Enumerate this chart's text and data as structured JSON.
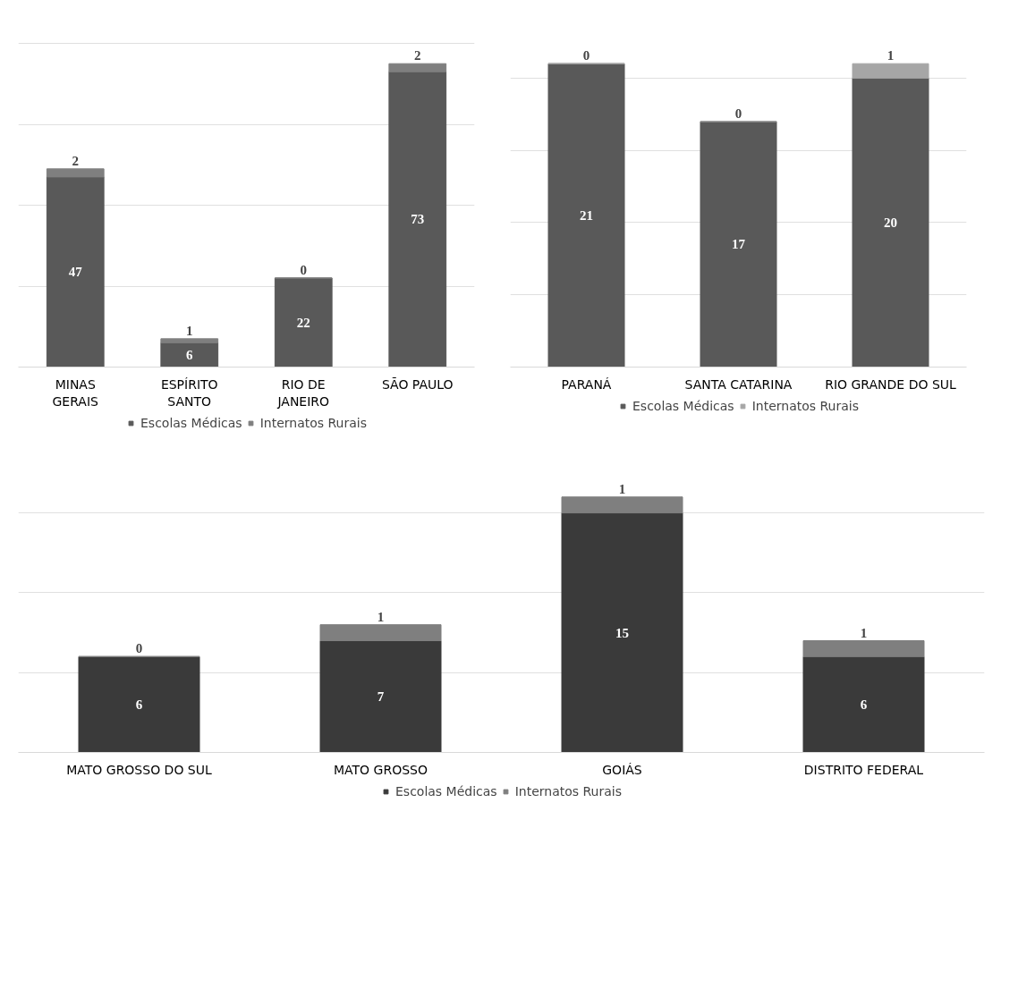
{
  "chart_data": [
    {
      "type": "bar",
      "stacked": true,
      "categories": [
        "MINAS GERAIS",
        "ESPÍRITO SANTO",
        "RIO DE JANEIRO",
        "SÃO PAULO"
      ],
      "series": [
        {
          "name": "Escolas Médicas",
          "color": "#595959",
          "values": [
            47,
            6,
            22,
            73
          ]
        },
        {
          "name": "Internatos Rurais",
          "color": "#7f7f7f",
          "values": [
            2,
            1,
            0,
            2
          ]
        }
      ],
      "tick_labels": "x",
      "grid": "y",
      "legend": "bottom",
      "data_labels": true
    },
    {
      "type": "bar",
      "stacked": true,
      "categories": [
        "PARANÁ",
        "SANTA CATARINA",
        "RIO GRANDE DO SUL"
      ],
      "series": [
        {
          "name": "Escolas Médicas",
          "color": "#595959",
          "values": [
            21,
            17,
            20
          ]
        },
        {
          "name": "Internatos Rurais",
          "color": "#a6a6a6",
          "values": [
            0,
            0,
            1
          ]
        }
      ],
      "tick_labels": "x",
      "grid": "y",
      "legend": "bottom",
      "data_labels": true
    },
    {
      "type": "bar",
      "stacked": true,
      "categories": [
        "MATO GROSSO DO SUL",
        "MATO GROSSO",
        "GOIÁS",
        "DISTRITO FEDERAL"
      ],
      "series": [
        {
          "name": "Escolas Médicas",
          "color": "#3a3a3a",
          "values": [
            6,
            7,
            15,
            6
          ]
        },
        {
          "name": "Internatos Rurais",
          "color": "#7f7f7f",
          "values": [
            0,
            1,
            1,
            1
          ]
        }
      ],
      "tick_labels": "x",
      "grid": "y",
      "legend": "bottom",
      "data_labels": true
    }
  ]
}
